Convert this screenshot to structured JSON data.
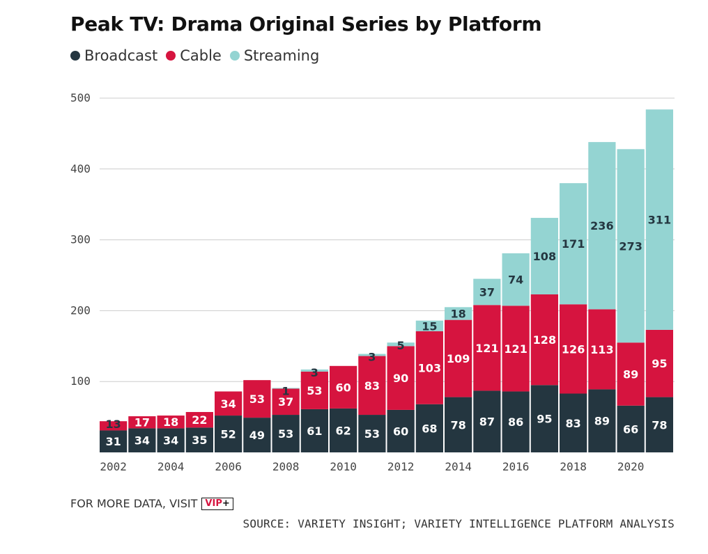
{
  "chart_data": {
    "type": "bar",
    "stacked": true,
    "title": "Peak TV: Drama Original Series by Platform",
    "categories": [
      "2002",
      "2003",
      "2004",
      "2005",
      "2006",
      "2007",
      "2008",
      "2009",
      "2010",
      "2011",
      "2012",
      "2013",
      "2014",
      "2015",
      "2016",
      "2017",
      "2018",
      "2019",
      "2020",
      "2021"
    ],
    "x_tick_labels": [
      "2002",
      "2004",
      "2006",
      "2008",
      "2010",
      "2012",
      "2014",
      "2016",
      "2018",
      "2020"
    ],
    "series": [
      {
        "name": "Broadcast",
        "color": "#243640",
        "label_color": "#ffffff",
        "values": [
          31,
          34,
          34,
          35,
          52,
          49,
          53,
          61,
          62,
          53,
          60,
          68,
          78,
          87,
          86,
          95,
          83,
          89,
          66,
          78
        ]
      },
      {
        "name": "Cable",
        "color": "#d6143f",
        "label_color": "#ffffff",
        "values": [
          13,
          17,
          18,
          22,
          34,
          53,
          37,
          53,
          60,
          83,
          90,
          103,
          109,
          121,
          121,
          128,
          126,
          113,
          89,
          95
        ]
      },
      {
        "name": "Streaming",
        "color": "#94d4d2",
        "label_color": "#243640",
        "values": [
          0,
          0,
          0,
          0,
          0,
          0,
          1,
          3,
          0,
          3,
          5,
          15,
          18,
          37,
          74,
          108,
          171,
          236,
          273,
          311
        ]
      }
    ],
    "ylim": [
      0,
      500
    ],
    "yticks": [
      100,
      200,
      300,
      400,
      500
    ],
    "grid": true,
    "legend_position": "top-left"
  },
  "footer": {
    "more_data": "FOR MORE DATA, VISIT",
    "vip_text": "VIP",
    "vip_plus": "+",
    "source": "SOURCE: VARIETY INSIGHT; VARIETY INTELLIGENCE PLATFORM ANALYSIS"
  }
}
